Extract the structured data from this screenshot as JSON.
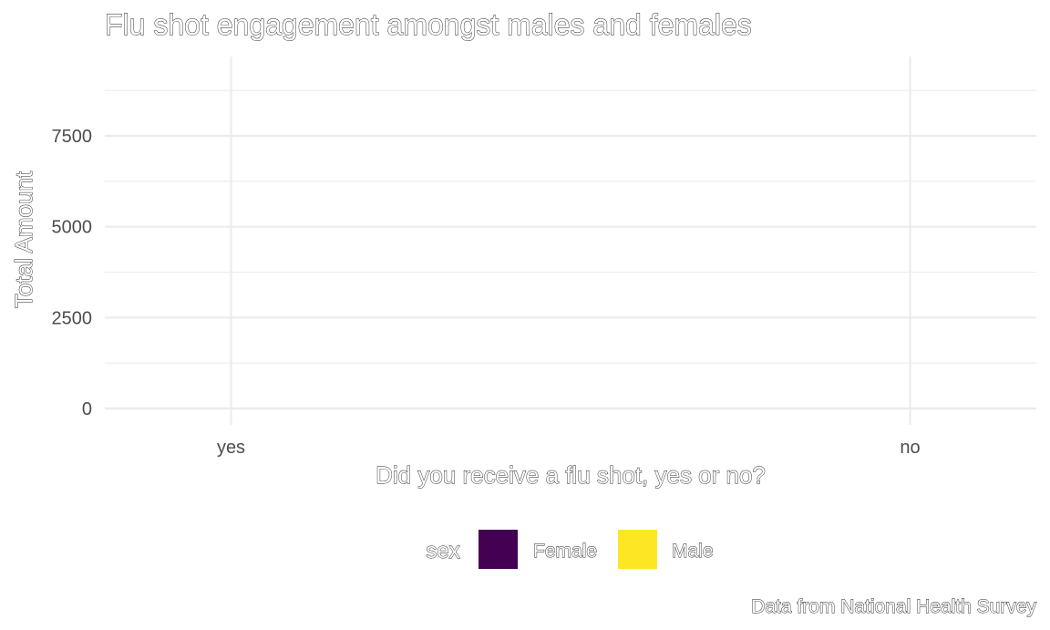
{
  "chart_data": {
    "type": "bar",
    "title": "Flu shot engagement amongst males and females",
    "xlabel": "Did you receive a flu shot, yes or no?",
    "ylabel": "Total Amount",
    "categories": [
      "yes",
      "no"
    ],
    "series": [
      {
        "name": "Female",
        "color": "#440154",
        "values": [
          0,
          0
        ]
      },
      {
        "name": "Male",
        "color": "#FDE725",
        "values": [
          0,
          0
        ]
      }
    ],
    "ylim": [
      0,
      9000
    ],
    "yticks": [
      0,
      2500,
      5000,
      7500
    ],
    "grid": true,
    "legend": {
      "title": "sex",
      "position": "bottom",
      "entries": [
        "Female",
        "Male"
      ]
    },
    "caption": "Data from National Health Survey"
  }
}
